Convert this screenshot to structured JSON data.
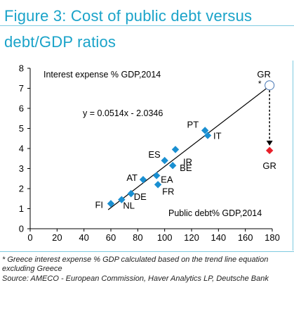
{
  "figure": {
    "title_line1": "Figure 3: Cost of public debt versus",
    "title_line2": "debt/GDP ratios",
    "title_color": "#1aa3c9",
    "footnote_1": "* Greece interest expense % GDP calculated based on the trend line equation  excluding Greece",
    "footnote_2": "Source: AMECO - European Commission, Haver Analytics LP, Deutsche Bank"
  },
  "chart_data": {
    "type": "scatter",
    "title": "",
    "xlabel": "Public debt% GDP,2014",
    "ylabel": "Interest expense % GDP,2014",
    "xlim": [
      0,
      180
    ],
    "ylim": [
      0,
      8
    ],
    "x_ticks": [
      0,
      20,
      40,
      60,
      80,
      100,
      120,
      140,
      160,
      180
    ],
    "y_ticks": [
      0,
      1,
      2,
      3,
      4,
      5,
      6,
      7,
      8
    ],
    "grid": false,
    "equation_label": "y = 0.0514x - 2.0346",
    "trendline": {
      "slope": 0.0514,
      "intercept": -2.0346,
      "x_range": [
        58,
        178
      ]
    },
    "points_color": "#1a8fd1",
    "points": [
      {
        "label": "FI",
        "x": 60,
        "y": 1.25
      },
      {
        "label": "NL",
        "x": 68,
        "y": 1.45
      },
      {
        "label": "DE",
        "x": 75,
        "y": 1.75
      },
      {
        "label": "AT",
        "x": 84,
        "y": 2.45
      },
      {
        "label": "ES",
        "x": 100,
        "y": 3.4
      },
      {
        "label": "FR",
        "x": 95,
        "y": 2.2
      },
      {
        "label": "EA",
        "x": 94,
        "y": 2.65
      },
      {
        "label": "BE",
        "x": 106,
        "y": 3.15
      },
      {
        "label": "IR",
        "x": 108,
        "y": 3.95
      },
      {
        "label": "PT",
        "x": 130,
        "y": 4.9
      },
      {
        "label": "IT",
        "x": 132,
        "y": 4.65
      }
    ],
    "estimated_point": {
      "label": "GR",
      "marker": "*",
      "x": 178,
      "y": 7.15
    },
    "actual_point": {
      "label": "GR",
      "x": 178,
      "y": 3.9,
      "color": "#e8202a"
    }
  }
}
